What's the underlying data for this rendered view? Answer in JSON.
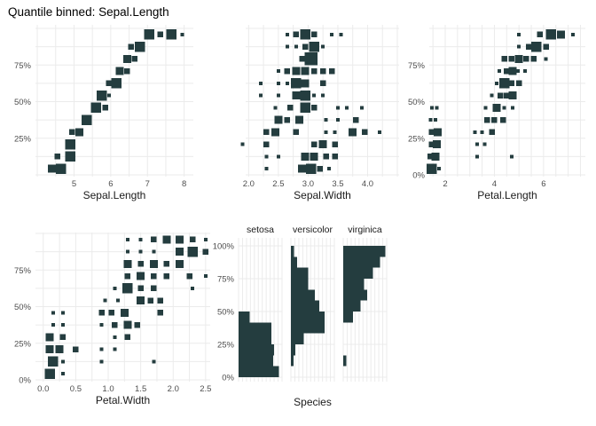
{
  "title": "Quantile binned: Sepal.Length",
  "colors": {
    "point": "#243D3F",
    "grid": "#EBEBEB",
    "tick_text": "#4D4D4D",
    "axis_title_text": "#1A1A1A",
    "strip_text": "#1A1A1A",
    "title_text": "#000000",
    "background": "#FFFFFF"
  },
  "chart_data": [
    {
      "type": "scatter",
      "name": "sepal-length",
      "xlabel": "Sepal.Length",
      "ylabel": "",
      "x_range": [
        3.95,
        8.25
      ],
      "x_grid_step": 0.5,
      "x_tick_vals": [
        5,
        6,
        7,
        8
      ],
      "x_tick_labels": [
        "5",
        "6",
        "7",
        "8"
      ],
      "y_tick_vals": [
        25,
        50,
        75
      ],
      "y_tick_labels": [
        "25%",
        "50%",
        "75%"
      ],
      "quantile_bins": 12,
      "points": [
        [
          4.4,
          0,
          3
        ],
        [
          4.65,
          0,
          4
        ],
        [
          4.55,
          1,
          2
        ],
        [
          4.9,
          1,
          4
        ],
        [
          4.9,
          2,
          4
        ],
        [
          4.95,
          3,
          2
        ],
        [
          5.15,
          3,
          3
        ],
        [
          5.35,
          4,
          4
        ],
        [
          5.6,
          5,
          4
        ],
        [
          5.85,
          5,
          2
        ],
        [
          5.75,
          6,
          4
        ],
        [
          5.95,
          6,
          1
        ],
        [
          5.95,
          7,
          2
        ],
        [
          6.15,
          7,
          4
        ],
        [
          6.25,
          8,
          3
        ],
        [
          6.45,
          8,
          2
        ],
        [
          6.45,
          9,
          3
        ],
        [
          6.65,
          9,
          2
        ],
        [
          6.55,
          10,
          2
        ],
        [
          6.8,
          10,
          4
        ],
        [
          7.05,
          11,
          4
        ],
        [
          7.35,
          11,
          2
        ],
        [
          7.65,
          11,
          4
        ],
        [
          7.95,
          11,
          1
        ]
      ]
    },
    {
      "type": "scatter",
      "name": "sepal-width",
      "xlabel": "Sepal.Width",
      "ylabel": "",
      "x_range": [
        1.95,
        4.53
      ],
      "x_grid_step": 0.25,
      "x_tick_vals": [
        2.0,
        2.5,
        3.0,
        3.5,
        4.0
      ],
      "x_tick_labels": [
        "2.0",
        "2.5",
        "3.0",
        "3.5",
        "4.0"
      ],
      "y_tick_vals": [],
      "y_tick_labels": [],
      "quantile_bins": 12,
      "points": [
        [
          2.3,
          0,
          1
        ],
        [
          2.9,
          0,
          3
        ],
        [
          3.05,
          0,
          4
        ],
        [
          3.2,
          0,
          2
        ],
        [
          3.35,
          0,
          1
        ],
        [
          2.3,
          1,
          1
        ],
        [
          2.5,
          1,
          1
        ],
        [
          2.95,
          1,
          3
        ],
        [
          3.1,
          1,
          3
        ],
        [
          3.3,
          1,
          2
        ],
        [
          3.45,
          1,
          2
        ],
        [
          1.9,
          2,
          1
        ],
        [
          2.3,
          2,
          2
        ],
        [
          3.1,
          2,
          2
        ],
        [
          3.25,
          2,
          3
        ],
        [
          3.45,
          2,
          2
        ],
        [
          2.3,
          3,
          2
        ],
        [
          2.45,
          3,
          3
        ],
        [
          2.8,
          3,
          2
        ],
        [
          3.3,
          3,
          1
        ],
        [
          3.45,
          3,
          1
        ],
        [
          3.75,
          3,
          3
        ],
        [
          3.95,
          3,
          2
        ],
        [
          4.2,
          3,
          1
        ],
        [
          2.5,
          4,
          3
        ],
        [
          2.65,
          4,
          2
        ],
        [
          2.85,
          4,
          3
        ],
        [
          3.3,
          4,
          1
        ],
        [
          3.5,
          4,
          1
        ],
        [
          3.8,
          4,
          2
        ],
        [
          2.45,
          5,
          1
        ],
        [
          2.7,
          5,
          2
        ],
        [
          2.95,
          5,
          4
        ],
        [
          3.1,
          5,
          2
        ],
        [
          3.5,
          5,
          1
        ],
        [
          3.65,
          5,
          1
        ],
        [
          3.9,
          5,
          1
        ],
        [
          2.2,
          6,
          1
        ],
        [
          2.5,
          6,
          1
        ],
        [
          2.8,
          6,
          3
        ],
        [
          2.95,
          6,
          4
        ],
        [
          3.1,
          6,
          1
        ],
        [
          3.25,
          6,
          1
        ],
        [
          2.2,
          7,
          1
        ],
        [
          2.5,
          7,
          1
        ],
        [
          2.65,
          7,
          1
        ],
        [
          2.8,
          7,
          4
        ],
        [
          2.95,
          7,
          3
        ],
        [
          3.25,
          7,
          2
        ],
        [
          2.5,
          8,
          1
        ],
        [
          2.65,
          8,
          2
        ],
        [
          2.8,
          8,
          3
        ],
        [
          2.95,
          8,
          3
        ],
        [
          3.1,
          8,
          2
        ],
        [
          3.25,
          8,
          2
        ],
        [
          3.4,
          8,
          2
        ],
        [
          2.9,
          9,
          2
        ],
        [
          3.05,
          9,
          5
        ],
        [
          2.65,
          10,
          1
        ],
        [
          2.8,
          10,
          1
        ],
        [
          2.95,
          10,
          2
        ],
        [
          3.1,
          10,
          4
        ],
        [
          3.25,
          10,
          1
        ],
        [
          2.65,
          11,
          1
        ],
        [
          2.8,
          11,
          2
        ],
        [
          2.95,
          11,
          4
        ],
        [
          3.1,
          11,
          2
        ],
        [
          3.4,
          11,
          1
        ],
        [
          3.55,
          11,
          1
        ]
      ]
    },
    {
      "type": "scatter",
      "name": "petal-length",
      "xlabel": "Petal.Length",
      "ylabel": "",
      "x_range": [
        1.35,
        7.7
      ],
      "x_grid_step": 0.5,
      "x_tick_vals": [
        2,
        4,
        6
      ],
      "x_tick_labels": [
        "2",
        "4",
        "6"
      ],
      "y_tick_vals": [
        0,
        25,
        50,
        75
      ],
      "y_tick_labels": [
        "0%",
        "25%",
        "50%",
        "75%"
      ],
      "quantile_bins": 12,
      "points": [
        [
          1.45,
          0,
          4
        ],
        [
          1.75,
          0,
          1
        ],
        [
          1.4,
          1,
          2
        ],
        [
          1.6,
          1,
          3
        ],
        [
          3.3,
          1,
          1
        ],
        [
          4.7,
          1,
          1
        ],
        [
          1.45,
          2,
          2
        ],
        [
          1.65,
          2,
          3
        ],
        [
          3.3,
          2,
          1
        ],
        [
          3.6,
          2,
          1
        ],
        [
          1.45,
          3,
          2
        ],
        [
          1.7,
          3,
          3
        ],
        [
          3.2,
          3,
          1
        ],
        [
          3.5,
          3,
          1
        ],
        [
          3.9,
          3,
          2
        ],
        [
          1.4,
          4,
          1
        ],
        [
          1.6,
          4,
          1
        ],
        [
          3.7,
          4,
          2
        ],
        [
          4.0,
          4,
          2
        ],
        [
          4.35,
          4,
          2
        ],
        [
          1.45,
          5,
          1
        ],
        [
          1.65,
          5,
          1
        ],
        [
          3.65,
          5,
          1
        ],
        [
          4.1,
          5,
          3
        ],
        [
          4.4,
          5,
          1
        ],
        [
          4.75,
          5,
          1
        ],
        [
          3.9,
          6,
          1
        ],
        [
          4.25,
          6,
          2
        ],
        [
          4.5,
          6,
          2
        ],
        [
          4.75,
          6,
          3
        ],
        [
          4.1,
          7,
          1
        ],
        [
          4.4,
          7,
          4
        ],
        [
          4.7,
          7,
          2
        ],
        [
          5.0,
          7,
          2
        ],
        [
          4.2,
          8,
          1
        ],
        [
          4.5,
          8,
          2
        ],
        [
          4.75,
          8,
          3
        ],
        [
          4.95,
          8,
          1
        ],
        [
          5.25,
          8,
          1
        ],
        [
          4.4,
          9,
          2
        ],
        [
          4.7,
          9,
          2
        ],
        [
          5.0,
          9,
          3
        ],
        [
          5.3,
          9,
          2
        ],
        [
          5.6,
          9,
          2
        ],
        [
          6.1,
          9,
          1
        ],
        [
          5.0,
          10,
          1
        ],
        [
          5.4,
          10,
          2
        ],
        [
          5.7,
          10,
          4
        ],
        [
          6.1,
          10,
          2
        ],
        [
          5.0,
          11,
          1
        ],
        [
          5.85,
          11,
          2
        ],
        [
          6.3,
          11,
          4
        ],
        [
          6.7,
          11,
          3
        ],
        [
          7.2,
          11,
          1
        ]
      ]
    },
    {
      "type": "scatter",
      "name": "petal-width",
      "xlabel": "Petal.Width",
      "ylabel": "",
      "x_range": [
        -0.12,
        2.57
      ],
      "x_grid_step": 0.25,
      "x_tick_vals": [
        0.0,
        0.5,
        1.0,
        1.5,
        2.0,
        2.5
      ],
      "x_tick_labels": [
        "0.0",
        "0.5",
        "1.0",
        "1.5",
        "2.0",
        "2.5"
      ],
      "y_tick_vals": [
        0,
        25,
        50,
        75
      ],
      "y_tick_labels": [
        "0%",
        "25%",
        "50%",
        "75%"
      ],
      "quantile_bins": 12,
      "points": [
        [
          0.1,
          0,
          4
        ],
        [
          0.3,
          0,
          1
        ],
        [
          0.15,
          1,
          4
        ],
        [
          0.3,
          1,
          1
        ],
        [
          0.9,
          1,
          1
        ],
        [
          1.7,
          1,
          1
        ],
        [
          0.1,
          2,
          3
        ],
        [
          0.25,
          2,
          3
        ],
        [
          0.5,
          2,
          2
        ],
        [
          0.9,
          2,
          1
        ],
        [
          1.1,
          2,
          1
        ],
        [
          0.1,
          3,
          3
        ],
        [
          0.3,
          3,
          2
        ],
        [
          1.1,
          3,
          1
        ],
        [
          1.3,
          3,
          2
        ],
        [
          0.15,
          4,
          1
        ],
        [
          0.3,
          4,
          1
        ],
        [
          0.9,
          4,
          1
        ],
        [
          1.1,
          4,
          2
        ],
        [
          1.3,
          4,
          3
        ],
        [
          1.45,
          4,
          2
        ],
        [
          0.15,
          5,
          1
        ],
        [
          0.3,
          5,
          1
        ],
        [
          0.9,
          5,
          2
        ],
        [
          1.05,
          5,
          2
        ],
        [
          1.25,
          5,
          3
        ],
        [
          1.8,
          5,
          2
        ],
        [
          0.95,
          6,
          1
        ],
        [
          1.15,
          6,
          1
        ],
        [
          1.5,
          6,
          3
        ],
        [
          1.65,
          6,
          2
        ],
        [
          1.8,
          6,
          2
        ],
        [
          1.1,
          7,
          1
        ],
        [
          1.3,
          7,
          4
        ],
        [
          1.5,
          7,
          2
        ],
        [
          1.7,
          7,
          2
        ],
        [
          2.3,
          7,
          1
        ],
        [
          1.3,
          8,
          2
        ],
        [
          1.5,
          8,
          3
        ],
        [
          1.7,
          8,
          2
        ],
        [
          1.9,
          8,
          2
        ],
        [
          2.25,
          8,
          2
        ],
        [
          2.5,
          8,
          1
        ],
        [
          1.3,
          9,
          3
        ],
        [
          1.5,
          9,
          2
        ],
        [
          1.7,
          9,
          3
        ],
        [
          1.9,
          9,
          2
        ],
        [
          2.1,
          9,
          3
        ],
        [
          1.3,
          10,
          1
        ],
        [
          1.5,
          10,
          1
        ],
        [
          1.7,
          10,
          1
        ],
        [
          2.1,
          10,
          3
        ],
        [
          2.3,
          10,
          4
        ],
        [
          2.5,
          10,
          2
        ],
        [
          1.3,
          11,
          1
        ],
        [
          1.5,
          11,
          1
        ],
        [
          1.7,
          11,
          2
        ],
        [
          1.9,
          11,
          3
        ],
        [
          2.1,
          11,
          3
        ],
        [
          2.3,
          11,
          2
        ],
        [
          2.5,
          11,
          1
        ]
      ]
    },
    {
      "type": "histogram",
      "name": "species",
      "xlabel": "Species",
      "ylabel": "",
      "y_tick_vals": [
        0,
        25,
        50,
        75,
        100
      ],
      "y_tick_labels": [
        "0%",
        "25%",
        "50%",
        "75%",
        "100%"
      ],
      "quantile_bins": 12,
      "facets": [
        {
          "label": "setosa",
          "bar_fractions_bottom_to_top": [
            0.93,
            0.8,
            0.82,
            0.76,
            0.76,
            0.26,
            0,
            0,
            0,
            0,
            0,
            0
          ]
        },
        {
          "label": "versicolor",
          "bar_fractions_bottom_to_top": [
            0,
            0.06,
            0.1,
            0.3,
            0.78,
            0.78,
            0.65,
            0.55,
            0.4,
            0.4,
            0.14,
            0.07
          ]
        },
        {
          "label": "virginica",
          "bar_fractions_bottom_to_top": [
            0,
            0.07,
            0,
            0,
            0,
            0.22,
            0.4,
            0.55,
            0.48,
            0.68,
            0.85,
            0.97
          ]
        }
      ]
    }
  ]
}
